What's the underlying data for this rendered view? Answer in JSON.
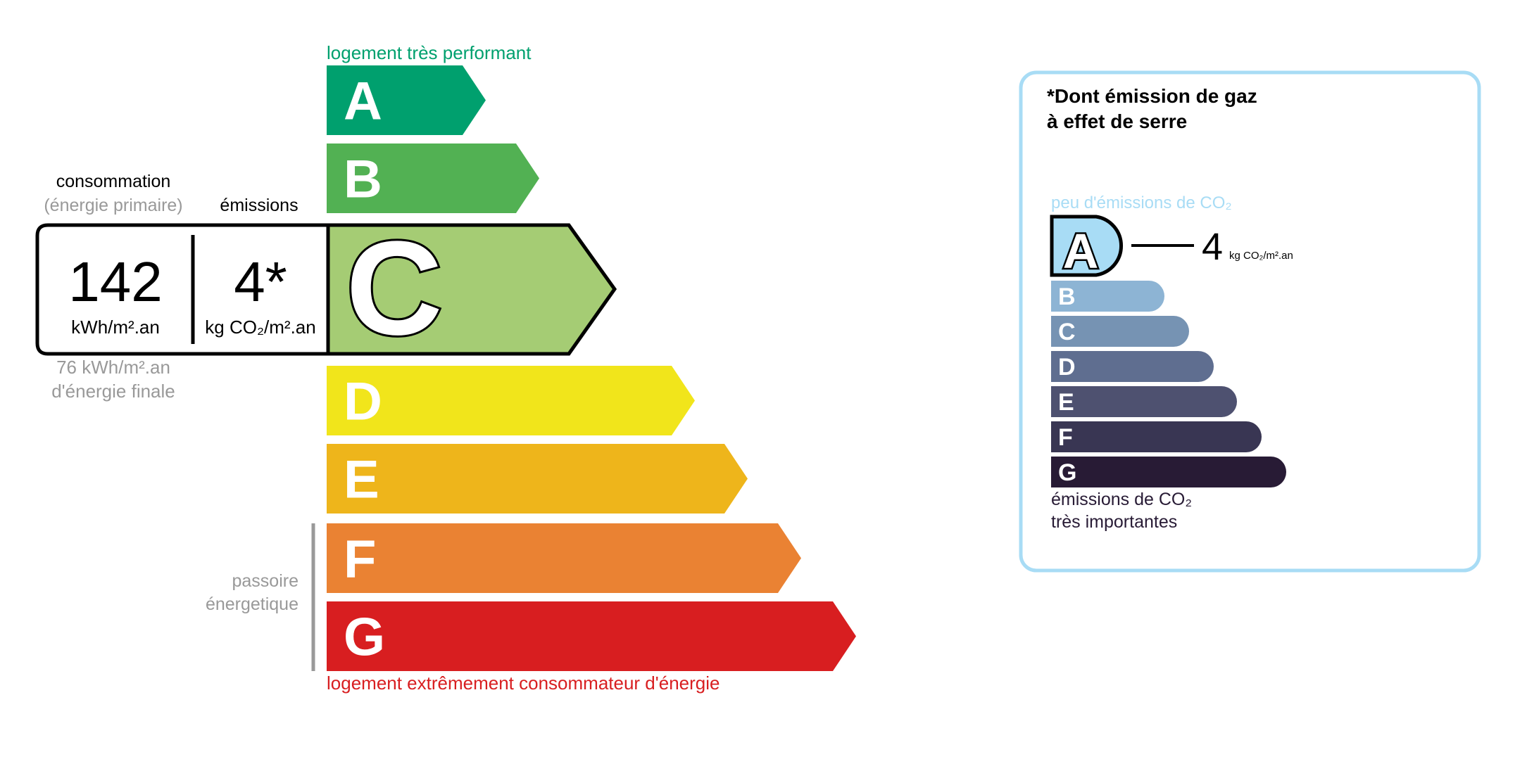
{
  "energy_label": {
    "top_label": "logement très performant",
    "bottom_label": "logement extrêmement consommateur d'énergie",
    "passoire_line1": "passoire",
    "passoire_line2": "énergetique",
    "classes": [
      {
        "letter": "A",
        "color": "#00a06e"
      },
      {
        "letter": "B",
        "color": "#52b153"
      },
      {
        "letter": "C",
        "color": "#a5cc74"
      },
      {
        "letter": "D",
        "color": "#f1e51b"
      },
      {
        "letter": "E",
        "color": "#eeb51b"
      },
      {
        "letter": "F",
        "color": "#ea8233"
      },
      {
        "letter": "G",
        "color": "#d81e20"
      }
    ],
    "current_class": "C",
    "consumption_header": "consommation",
    "consumption_subheader": "(énergie primaire)",
    "emissions_header": "émissions",
    "consumption_value": "142",
    "consumption_unit": "kWh/m².an",
    "emissions_value": "4*",
    "emissions_unit": "kg CO₂/m².an",
    "final_energy_value": "76 kWh/m².an",
    "final_energy_label": "d'énergie finale"
  },
  "ges_panel": {
    "title_line1": "*Dont émission de gaz",
    "title_line2": "à effet de serre",
    "top_label": "peu d'émissions de CO₂",
    "bottom_label_line1": "émissions de CO₂",
    "bottom_label_line2": "très importantes",
    "current_class": "A",
    "value": "4",
    "unit": "kg CO₂/m².an",
    "border_color": "#a8dcf5",
    "classes": [
      {
        "letter": "A",
        "color": "#a8dcf5"
      },
      {
        "letter": "B",
        "color": "#8db4d4"
      },
      {
        "letter": "C",
        "color": "#7693b3"
      },
      {
        "letter": "D",
        "color": "#5f6e90"
      },
      {
        "letter": "E",
        "color": "#4e5170"
      },
      {
        "letter": "F",
        "color": "#393653"
      },
      {
        "letter": "G",
        "color": "#281b35"
      }
    ]
  }
}
